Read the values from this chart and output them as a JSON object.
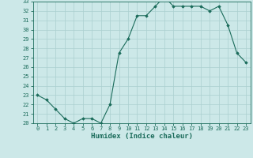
{
  "x": [
    0,
    1,
    2,
    3,
    4,
    5,
    6,
    7,
    8,
    9,
    10,
    11,
    12,
    13,
    14,
    15,
    16,
    17,
    18,
    19,
    20,
    21,
    22,
    23
  ],
  "y": [
    23.0,
    22.5,
    21.5,
    20.5,
    20.0,
    20.5,
    20.5,
    20.0,
    22.0,
    27.5,
    29.0,
    31.5,
    31.5,
    32.5,
    33.5,
    32.5,
    32.5,
    32.5,
    32.5,
    32.0,
    32.5,
    30.5,
    27.5,
    26.5
  ],
  "xlabel": "Humidex (Indice chaleur)",
  "xlim": [
    -0.5,
    23.5
  ],
  "ylim": [
    20,
    33
  ],
  "yticks": [
    20,
    21,
    22,
    23,
    24,
    25,
    26,
    27,
    28,
    29,
    30,
    31,
    32,
    33
  ],
  "xticks": [
    0,
    1,
    2,
    3,
    4,
    5,
    6,
    7,
    8,
    9,
    10,
    11,
    12,
    13,
    14,
    15,
    16,
    17,
    18,
    19,
    20,
    21,
    22,
    23
  ],
  "line_color": "#1a6b5a",
  "marker_color": "#1a6b5a",
  "bg_color": "#cce8e8",
  "grid_color": "#aacfcf",
  "axis_label_color": "#1a6b5a",
  "tick_color": "#1a6b5a",
  "tick_fontsize": 5.0,
  "xlabel_fontsize": 6.5
}
